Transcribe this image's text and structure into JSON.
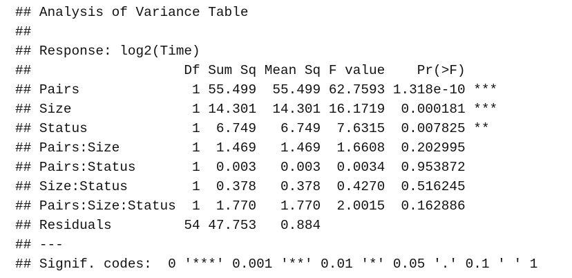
{
  "prefix": "##",
  "title": "Analysis of Variance Table",
  "response": "Response: log2(Time)",
  "table": {
    "columns": [
      "Df",
      "Sum Sq",
      "Mean Sq",
      "F value",
      "Pr(>F)"
    ],
    "rows": [
      {
        "term": "Pairs",
        "cells": [
          "1",
          "55.499",
          "55.499",
          "62.7593",
          "1.318e-10"
        ],
        "signif": "***"
      },
      {
        "term": "Size",
        "cells": [
          "1",
          "14.301",
          "14.301",
          "16.1719",
          "0.000181"
        ],
        "signif": "***"
      },
      {
        "term": "Status",
        "cells": [
          "1",
          "6.749",
          "6.749",
          "7.6315",
          "0.007825"
        ],
        "signif": "**"
      },
      {
        "term": "Pairs:Size",
        "cells": [
          "1",
          "1.469",
          "1.469",
          "1.6608",
          "0.202995"
        ]
      },
      {
        "term": "Pairs:Status",
        "cells": [
          "1",
          "0.003",
          "0.003",
          "0.0034",
          "0.953872"
        ]
      },
      {
        "term": "Size:Status",
        "cells": [
          "1",
          "0.378",
          "0.378",
          "0.4270",
          "0.516245"
        ]
      },
      {
        "term": "Pairs:Size:Status",
        "cells": [
          "1",
          "1.770",
          "1.770",
          "2.0015",
          "0.162886"
        ]
      },
      {
        "term": "Residuals",
        "cells": [
          "54",
          "47.753",
          "0.884"
        ]
      }
    ]
  },
  "separator": "---",
  "signif_codes": "Signif. codes:  0 '***' 0.001 '**' 0.01 '*' 0.05 '.' 0.1 ' ' 1"
}
